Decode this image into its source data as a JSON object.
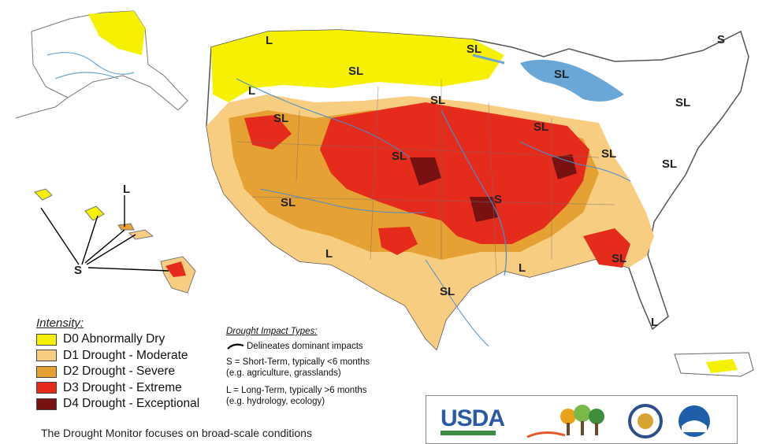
{
  "region_labels": {
    "sl": "SL",
    "s": "S",
    "l": "L"
  },
  "legend": {
    "title": "Intensity:",
    "items": [
      {
        "label": "D0 Abnormally Dry",
        "color": "#f5f100"
      },
      {
        "label": "D1 Drought - Moderate",
        "color": "#f7cd82"
      },
      {
        "label": "D2 Drought - Severe",
        "color": "#e5a133"
      },
      {
        "label": "D3 Drought - Extreme",
        "color": "#e52c1c"
      },
      {
        "label": "D4 Drought - Exceptional",
        "color": "#781212"
      }
    ]
  },
  "impacts": {
    "title": "Drought Impact Types:",
    "delineates": "Delineates dominant impacts",
    "short_term": "S = Short-Term, typically <6 months",
    "short_term_example": "(e.g. agriculture, grasslands)",
    "long_term": "L = Long-Term, typically >6 months",
    "long_term_example": "(e.g. hydrology, ecology)"
  },
  "sponsors": {
    "usda": "USDA"
  },
  "footer": {
    "text": "The Drought Monitor focuses on broad-scale conditions"
  }
}
